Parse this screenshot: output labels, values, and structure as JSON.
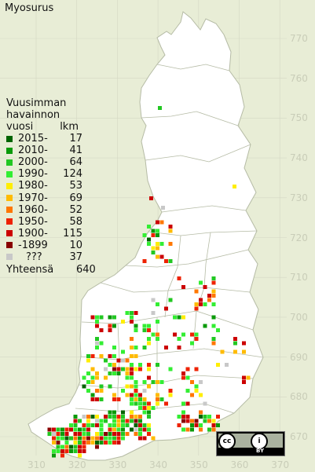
{
  "title": "Myosurus",
  "legend": {
    "header_line1": "Vuusimman",
    "header_line2": "havainnon",
    "header_col1": "vuosi",
    "header_col2": "lkm",
    "items": [
      {
        "label": "2015-",
        "count": "17",
        "color": "#006400"
      },
      {
        "label": "2010-",
        "count": "41",
        "color": "#0a9a0a"
      },
      {
        "label": "2000-",
        "count": "64",
        "color": "#22c722"
      },
      {
        "label": "1990-",
        "count": "124",
        "color": "#33ee33"
      },
      {
        "label": "1980-",
        "count": "53",
        "color": "#ffee00"
      },
      {
        "label": "1970-",
        "count": "69",
        "color": "#ffbb00"
      },
      {
        "label": "1960-",
        "count": "52",
        "color": "#ff7700"
      },
      {
        "label": "1950-",
        "count": "58",
        "color": "#ee2200"
      },
      {
        "label": "1900-",
        "count": "115",
        "color": "#cc0000"
      },
      {
        "label": "-1899",
        "count": "10",
        "color": "#880000"
      },
      {
        "label": "???",
        "count": "37",
        "color": "#c8c8c8"
      }
    ],
    "total_label": "Yhteensä",
    "total_count": "640"
  },
  "y_labels": [
    "770",
    "760",
    "750",
    "740",
    "730",
    "720",
    "710",
    "700",
    "690",
    "680",
    "670"
  ],
  "x_labels": [
    "310",
    "320",
    "330",
    "340",
    "350",
    "360",
    "370"
  ],
  "license": {
    "cc": "cc",
    "by_symbol": "i",
    "by_text": "BY"
  },
  "colors": {
    "background": "#e8edd6",
    "land": "#ffffff",
    "grid": "#d4d8c4",
    "border": "#b5bba5"
  }
}
